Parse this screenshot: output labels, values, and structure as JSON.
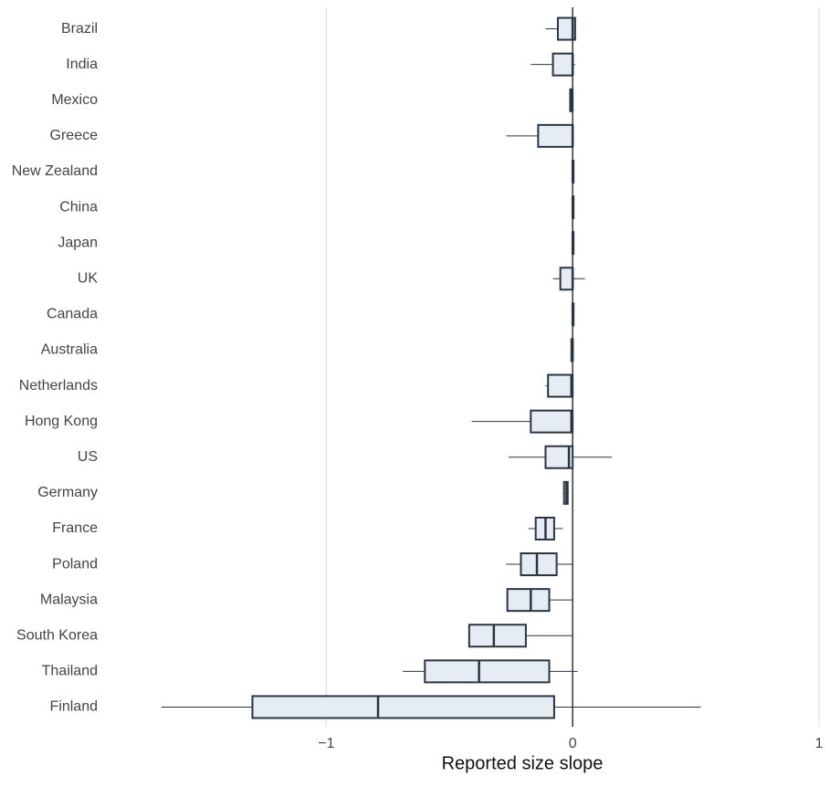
{
  "chart_data": {
    "type": "box",
    "x_label": "Reported size slope",
    "categories": [
      "Brazil",
      "India",
      "Mexico",
      "Greece",
      "New Zealand",
      "China",
      "Japan",
      "UK",
      "Canada",
      "Australia",
      "Netherlands",
      "Hong Kong",
      "US",
      "Germany",
      "France",
      "Poland",
      "Malaysia",
      "South Korea",
      "Thailand",
      "Finland"
    ],
    "low": [
      -0.11,
      -0.17,
      -0.01,
      -0.27,
      0,
      0,
      0,
      -0.08,
      0,
      -0.005,
      -0.11,
      -0.41,
      -0.26,
      -0.04,
      -0.18,
      -0.27,
      -0.27,
      -0.42,
      -0.69,
      -1.67
    ],
    "q1": [
      -0.06,
      -0.08,
      -0.01,
      -0.14,
      0,
      0,
      0,
      -0.05,
      0,
      -0.005,
      -0.1,
      -0.17,
      -0.11,
      -0.035,
      -0.15,
      -0.21,
      -0.265,
      -0.42,
      -0.6,
      -1.3
    ],
    "median": [
      0,
      0,
      -0.005,
      0,
      0,
      0,
      0,
      0,
      0,
      0,
      -0.005,
      -0.005,
      -0.015,
      -0.025,
      -0.11,
      -0.145,
      -0.17,
      -0.32,
      -0.38,
      -0.79
    ],
    "q3": [
      0.01,
      0,
      0,
      0,
      0,
      0,
      0,
      0,
      0,
      0,
      0,
      0,
      0,
      -0.02,
      -0.075,
      -0.065,
      -0.095,
      -0.19,
      -0.095,
      -0.075
    ],
    "high": [
      0.01,
      0.01,
      0,
      0,
      0,
      0,
      0,
      0.05,
      0,
      0,
      0,
      0,
      0.16,
      -0.015,
      -0.04,
      0,
      0,
      0,
      0.02,
      0.52
    ],
    "color": "#e5ecf3",
    "line_color": "#2a3542",
    "xlim": [
      -1.88,
      1.03
    ],
    "xticks": [
      {
        "value": -1,
        "label": "−1"
      },
      0,
      1
    ],
    "grid": true
  }
}
